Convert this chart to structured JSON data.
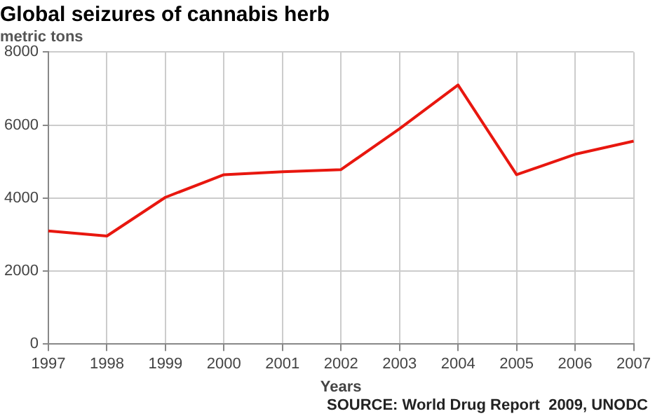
{
  "chart_data": {
    "type": "line",
    "title": "Global seizures of cannabis herb",
    "subtitle": "metric tons",
    "xlabel": "Years",
    "annotations": [
      "SOURCE: World Drug Report  2009, UNODC"
    ],
    "categories": [
      "1997",
      "1998",
      "1999",
      "2000",
      "2001",
      "2002",
      "2003",
      "2004",
      "2005",
      "2006",
      "2007"
    ],
    "series": [
      {
        "color": "#e8170f",
        "values": [
          3100,
          2960,
          4020,
          4640,
          4720,
          4780,
          5900,
          7100,
          4640,
          5200,
          5560
        ]
      }
    ],
    "ylim": [
      0,
      8000
    ],
    "yticks": [
      0,
      2000,
      4000,
      6000,
      8000
    ],
    "grid": true,
    "legend": false,
    "marker": "none",
    "line_style": "solid"
  }
}
